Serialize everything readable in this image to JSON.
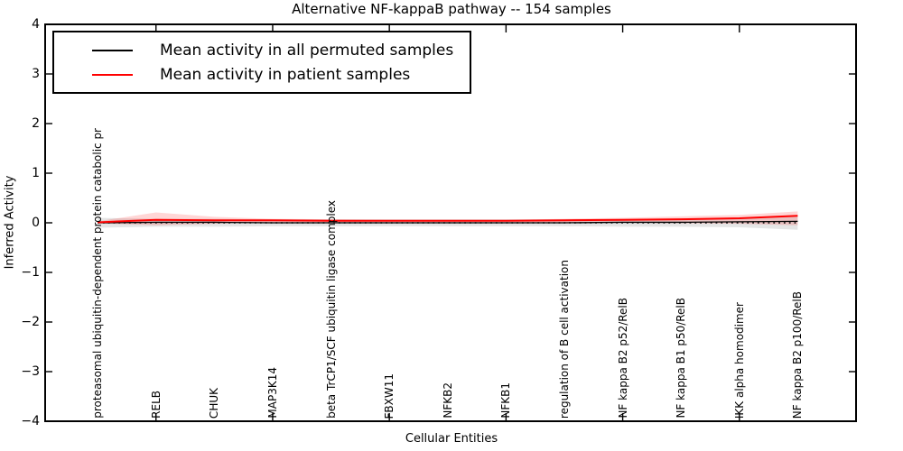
{
  "chart_data": {
    "type": "line",
    "title": "Alternative NF-kappaB pathway -- 154 samples",
    "xlabel": "Cellular Entities",
    "ylabel": "Inferred Activity",
    "ylim": [
      -4,
      4
    ],
    "xlim": [
      -0.9,
      13.0
    ],
    "yticks": [
      -4,
      -3,
      -2,
      -1,
      0,
      1,
      2,
      3,
      4
    ],
    "xticks_at": [
      1,
      3,
      5,
      7,
      9,
      11
    ],
    "grid": false,
    "zero_line_style": "dotted",
    "legend_position": "upper left",
    "categories": [
      "proteasomal ubiquitin-dependent protein catabolic pr",
      "RELB",
      "CHUK",
      "MAP3K14",
      "beta TrCP1/SCF ubiquitin ligase complex",
      "FBXW11",
      "NFKB2",
      "NFKB1",
      "regulation of B cell activation",
      "NF kappa B2 p52/RelB",
      "NF kappa B1 p50/RelB",
      "IKK alpha homodimer",
      "NF kappa B2 p100/RelB"
    ],
    "series": [
      {
        "name": "Mean activity in all permuted samples",
        "color": "#000000",
        "line_width": 1.3,
        "values": [
          0.0,
          0.01,
          0.01,
          0.0,
          0.0,
          0.0,
          0.0,
          0.0,
          0.0,
          0.01,
          0.01,
          0.02,
          0.03
        ],
        "band_upper": [
          0.1,
          0.08,
          0.08,
          0.07,
          0.07,
          0.07,
          0.07,
          0.07,
          0.07,
          0.08,
          0.08,
          0.09,
          0.14
        ],
        "band_lower": [
          -0.1,
          -0.08,
          -0.08,
          -0.07,
          -0.07,
          -0.07,
          -0.07,
          -0.07,
          -0.07,
          -0.08,
          -0.08,
          -0.09,
          -0.14
        ],
        "band_color": "#000000",
        "band_opacity": 0.1
      },
      {
        "name": "Mean activity in patient samples",
        "color": "#ff0000",
        "line_width": 2,
        "values": [
          0.01,
          0.06,
          0.05,
          0.05,
          0.04,
          0.04,
          0.04,
          0.04,
          0.05,
          0.06,
          0.07,
          0.09,
          0.14
        ],
        "band_upper": [
          0.03,
          0.21,
          0.12,
          0.08,
          0.07,
          0.06,
          0.06,
          0.06,
          0.08,
          0.1,
          0.13,
          0.16,
          0.23
        ],
        "band_lower": [
          -0.01,
          -0.05,
          -0.02,
          0.01,
          0.01,
          0.01,
          0.01,
          0.01,
          0.01,
          0.0,
          -0.01,
          -0.02,
          -0.05
        ],
        "band_color": "#ff0000",
        "band_opacity": 0.16
      }
    ]
  }
}
